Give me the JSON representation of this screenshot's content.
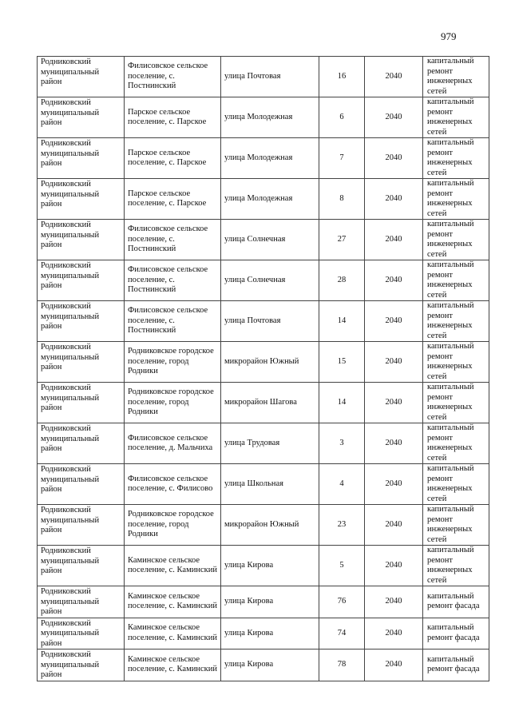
{
  "page_number": "979",
  "rows": [
    {
      "district": "Родниковский муниципальный район",
      "settlement": "Филисовское сельское поселение, с. Постнинский",
      "street": "улица Почтовая",
      "house": "16",
      "year": "2040",
      "work": "капитальный ремонт инженерных сетей"
    },
    {
      "district": "Родниковский муниципальный район",
      "settlement": "Парское сельское поселение, с. Парское",
      "street": "улица Молодежная",
      "house": "6",
      "year": "2040",
      "work": "капитальный ремонт инженерных сетей"
    },
    {
      "district": "Родниковский муниципальный район",
      "settlement": "Парское сельское поселение, с. Парское",
      "street": "улица Молодежная",
      "house": "7",
      "year": "2040",
      "work": "капитальный ремонт инженерных сетей"
    },
    {
      "district": "Родниковский муниципальный район",
      "settlement": "Парское сельское поселение, с. Парское",
      "street": "улица Молодежная",
      "house": "8",
      "year": "2040",
      "work": "капитальный ремонт инженерных сетей"
    },
    {
      "district": "Родниковский муниципальный район",
      "settlement": "Филисовское сельское поселение, с. Постнинский",
      "street": "улица Солнечная",
      "house": "27",
      "year": "2040",
      "work": "капитальный ремонт инженерных сетей"
    },
    {
      "district": "Родниковский муниципальный район",
      "settlement": "Филисовское сельское поселение, с. Постнинский",
      "street": "улица Солнечная",
      "house": "28",
      "year": "2040",
      "work": "капитальный ремонт инженерных сетей"
    },
    {
      "district": "Родниковский муниципальный район",
      "settlement": "Филисовское сельское поселение, с. Постнинский",
      "street": "улица Почтовая",
      "house": "14",
      "year": "2040",
      "work": "капитальный ремонт инженерных сетей"
    },
    {
      "district": "Родниковский муниципальный район",
      "settlement": "Родниковское городское поселение, город Родники",
      "street": "микрорайон Южный",
      "house": "15",
      "year": "2040",
      "work": "капитальный ремонт инженерных сетей"
    },
    {
      "district": "Родниковский муниципальный район",
      "settlement": "Родниковское городское поселение, город Родники",
      "street": "микрорайон Шагова",
      "house": "14",
      "year": "2040",
      "work": "капитальный ремонт инженерных сетей"
    },
    {
      "district": "Родниковский муниципальный район",
      "settlement": "Филисовское сельское поселение, д. Мальчиха",
      "street": "улица Трудовая",
      "house": "3",
      "year": "2040",
      "work": "капитальный ремонт инженерных сетей"
    },
    {
      "district": "Родниковский муниципальный район",
      "settlement": "Филисовское сельское поселение, с. Филисово",
      "street": "улица Школьная",
      "house": "4",
      "year": "2040",
      "work": "капитальный ремонт инженерных сетей"
    },
    {
      "district": "Родниковский муниципальный район",
      "settlement": "Родниковское городское поселение, город Родники",
      "street": "микрорайон Южный",
      "house": "23",
      "year": "2040",
      "work": "капитальный ремонт инженерных сетей"
    },
    {
      "district": "Родниковский муниципальный район",
      "settlement": "Каминское сельское поселение, с. Каминский",
      "street": "улица Кирова",
      "house": "5",
      "year": "2040",
      "work": "капитальный ремонт инженерных сетей"
    },
    {
      "district": "Родниковский муниципальный район",
      "settlement": "Каминское сельское поселение, с. Каминский",
      "street": "улица Кирова",
      "house": "76",
      "year": "2040",
      "work": "капитальный ремонт фасада"
    },
    {
      "district": "Родниковский муниципальный район",
      "settlement": "Каминское сельское поселение, с. Каминский",
      "street": "улица Кирова",
      "house": "74",
      "year": "2040",
      "work": "капитальный ремонт фасада"
    },
    {
      "district": "Родниковский муниципальный район",
      "settlement": "Каминское сельское поселение, с. Каминский",
      "street": "улица Кирова",
      "house": "78",
      "year": "2040",
      "work": "капитальный ремонт фасада"
    }
  ]
}
